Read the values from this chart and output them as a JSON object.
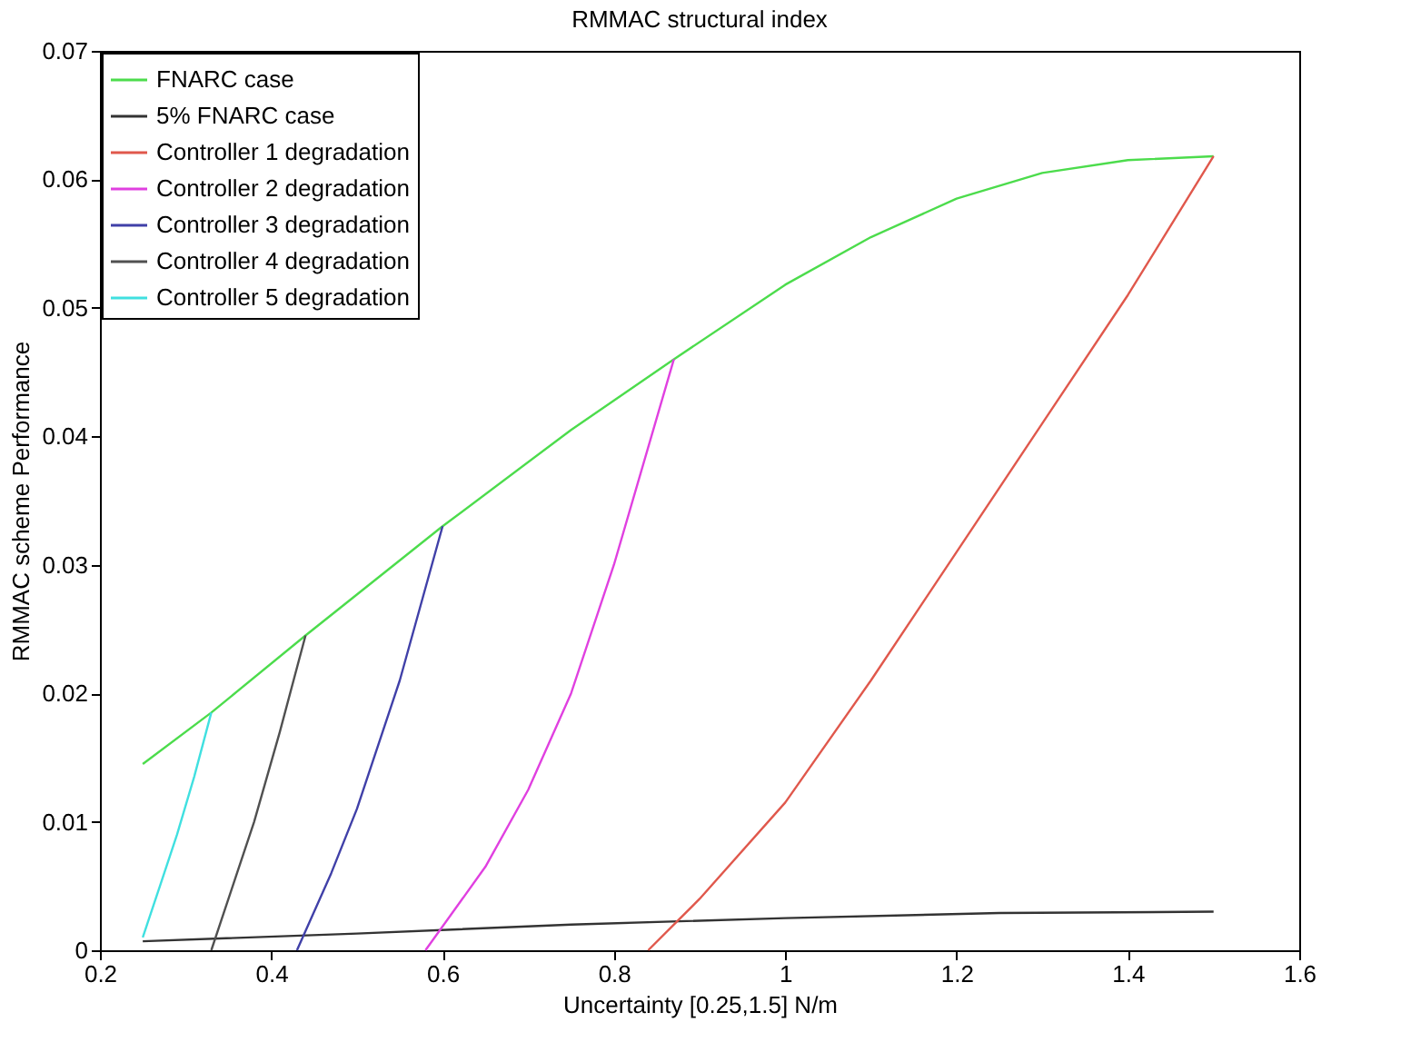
{
  "chart_data": {
    "type": "line",
    "title": "RMMAC structural index",
    "xlabel": "Uncertainty [0.25,1.5] N/m",
    "ylabel": "RMMAC scheme Performance",
    "xlim": [
      0.2,
      1.6
    ],
    "xticks": [
      0.2,
      0.4,
      0.6,
      0.8,
      1,
      1.2,
      1.4,
      1.6
    ],
    "ylim": [
      0,
      0.07
    ],
    "yticks": [
      0,
      0.01,
      0.02,
      0.03,
      0.04,
      0.05,
      0.06,
      0.07
    ],
    "grid": false,
    "legend": "top left",
    "marker": "none",
    "line_style": "solid",
    "series": [
      {
        "name": "FNARC case",
        "color": "#4cdc4c",
        "x": [
          0.25,
          0.33,
          0.44,
          0.6,
          0.75,
          0.87,
          1.0,
          1.1,
          1.2,
          1.3,
          1.4,
          1.5
        ],
        "values": [
          0.0145,
          0.0185,
          0.0245,
          0.033,
          0.0405,
          0.046,
          0.0518,
          0.0555,
          0.0585,
          0.0605,
          0.0615,
          0.0618
        ]
      },
      {
        "name": "5% FNARC case",
        "color": "#333333",
        "x": [
          0.25,
          0.5,
          0.75,
          1.0,
          1.25,
          1.5
        ],
        "values": [
          0.0007,
          0.0013,
          0.002,
          0.0025,
          0.0029,
          0.003
        ]
      },
      {
        "name": "Controller 1 degradation",
        "color": "#e0584c",
        "x": [
          0.84,
          0.9,
          1.0,
          1.1,
          1.2,
          1.3,
          1.4,
          1.5
        ],
        "values": [
          0.0,
          0.004,
          0.0115,
          0.021,
          0.031,
          0.041,
          0.051,
          0.0618
        ]
      },
      {
        "name": "Controller 2 degradation",
        "color": "#e040e0",
        "x": [
          0.58,
          0.65,
          0.7,
          0.75,
          0.8,
          0.87
        ],
        "values": [
          0.0,
          0.0065,
          0.0125,
          0.02,
          0.03,
          0.046
        ]
      },
      {
        "name": "Controller 3 degradation",
        "color": "#4040a8",
        "x": [
          0.43,
          0.47,
          0.5,
          0.55,
          0.6
        ],
        "values": [
          0.0,
          0.006,
          0.011,
          0.021,
          0.033
        ]
      },
      {
        "name": "Controller 4 degradation",
        "color": "#505050",
        "x": [
          0.33,
          0.36,
          0.38,
          0.41,
          0.44
        ],
        "values": [
          0.0,
          0.006,
          0.01,
          0.017,
          0.0245
        ]
      },
      {
        "name": "Controller 5 degradation",
        "color": "#40e0e0",
        "x": [
          0.25,
          0.27,
          0.29,
          0.31,
          0.33
        ],
        "values": [
          0.001,
          0.005,
          0.009,
          0.0135,
          0.0185
        ]
      }
    ]
  }
}
